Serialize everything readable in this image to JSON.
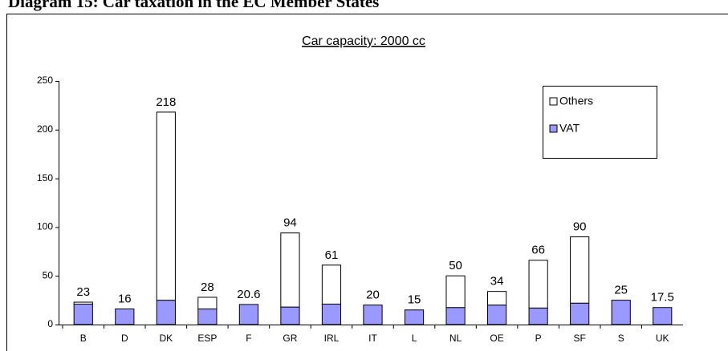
{
  "heading": "Diagram 15: Car taxation in the EC Member States",
  "chart_data": {
    "type": "stacked_bar",
    "title": "Car capacity: 2000 cc",
    "categories": [
      "B",
      "D",
      "DK",
      "ESP",
      "F",
      "GR",
      "IRL",
      "IT",
      "L",
      "NL",
      "OE",
      "P",
      "SF",
      "S",
      "UK"
    ],
    "series": [
      {
        "name": "VAT",
        "color": "#9999ff",
        "values": [
          21,
          16,
          25,
          16,
          20.6,
          18,
          21,
          20,
          15,
          17.5,
          20,
          17,
          22,
          25,
          17.5
        ]
      },
      {
        "name": "Others",
        "color": "#ffffff",
        "values": [
          2,
          0,
          193,
          12,
          0,
          76,
          40,
          0,
          0,
          32.5,
          14,
          49,
          68,
          0,
          0
        ]
      }
    ],
    "totals": [
      23,
      16,
      218,
      28,
      20.6,
      94,
      61,
      20,
      15,
      50,
      34,
      66,
      90,
      25,
      17.5
    ],
    "ylim": [
      0,
      250
    ],
    "yticks": [
      0,
      50,
      100,
      150,
      200,
      250
    ],
    "grid": false,
    "legend": "upper right"
  }
}
